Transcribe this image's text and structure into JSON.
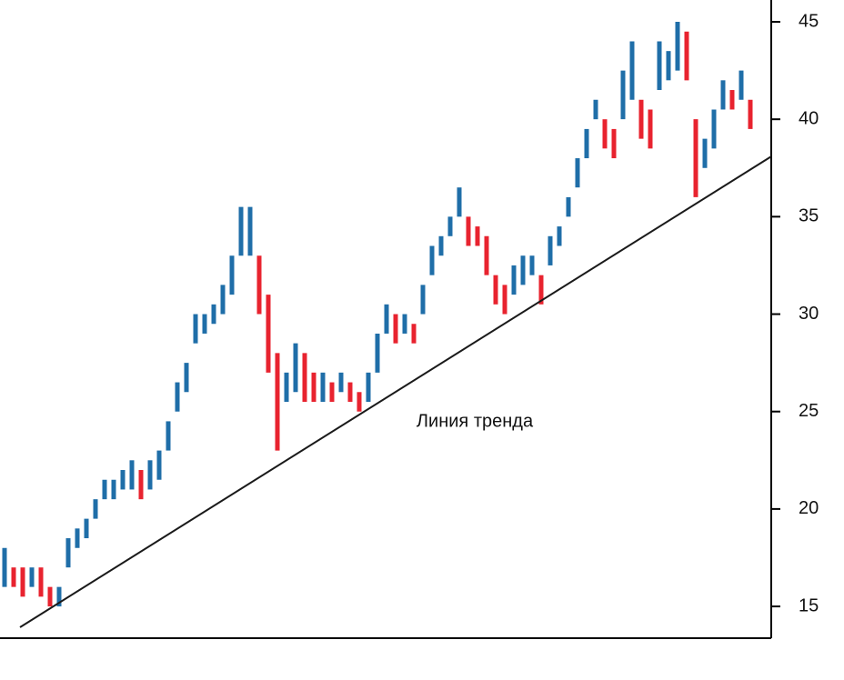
{
  "chart_data": {
    "type": "range-bar",
    "annotation": "Линия тренда",
    "xlim": [
      0,
      84.8
    ],
    "ylim": [
      13.37,
      46.12
    ],
    "yticks": [
      15,
      20,
      25,
      30,
      35,
      40,
      45
    ],
    "up_color": "#1f6ea8",
    "down_color": "#e8232f",
    "x": [
      0.5,
      1.5,
      2.5,
      3.5,
      4.5,
      5.5,
      6.5,
      7.5,
      8.5,
      9.5,
      10.5,
      11.5,
      12.5,
      13.5,
      14.5,
      15.5,
      16.5,
      17.5,
      18.5,
      19.5,
      20.5,
      21.5,
      22.5,
      23.5,
      24.5,
      25.5,
      26.5,
      27.5,
      28.5,
      29.5,
      30.5,
      31.5,
      32.5,
      33.5,
      34.5,
      35.5,
      36.5,
      37.5,
      38.5,
      39.5,
      40.5,
      41.5,
      42.5,
      43.5,
      44.5,
      45.5,
      46.5,
      47.5,
      48.5,
      49.5,
      50.5,
      51.5,
      52.5,
      53.5,
      54.5,
      55.5,
      56.5,
      57.5,
      58.5,
      59.5,
      60.5,
      61.5,
      62.5,
      63.5,
      64.5,
      65.5,
      66.5,
      67.5,
      68.5,
      69.5,
      70.5,
      71.5,
      72.5,
      73.5,
      74.5,
      75.5,
      76.5,
      77.5,
      78.5,
      79.5,
      80.5,
      81.5,
      82.5
    ],
    "low": [
      16,
      16,
      15.5,
      16,
      15.5,
      15,
      15,
      17,
      18,
      18.5,
      19.5,
      20.5,
      20.5,
      21,
      21,
      20.5,
      21,
      21.5,
      23,
      25,
      26,
      28.5,
      29,
      29.5,
      30,
      31,
      33,
      33,
      30,
      27,
      23,
      25.5,
      26,
      25.5,
      25.5,
      25.5,
      25.5,
      26,
      25.5,
      25,
      25.5,
      27,
      29,
      28.5,
      29,
      28.5,
      30,
      32,
      33,
      34,
      35,
      33.5,
      33.5,
      32,
      30.5,
      30,
      31,
      31.5,
      32,
      30.5,
      32.5,
      33.5,
      35,
      36.5,
      38,
      40,
      38.5,
      38,
      40,
      41,
      39,
      38.5,
      41.5,
      42,
      42.5,
      42,
      36,
      37.5,
      38.5,
      40.5,
      40.5,
      41,
      39.5
    ],
    "high": [
      18,
      17,
      17,
      17,
      17,
      16,
      16,
      18.5,
      19,
      19.5,
      20.5,
      21.5,
      21.5,
      22,
      22.5,
      22,
      22.5,
      23,
      24.5,
      26.5,
      27.5,
      30,
      30,
      30.5,
      31.5,
      33,
      35.5,
      35.5,
      33,
      31,
      28,
      27,
      28.5,
      28,
      27,
      27,
      26.5,
      27,
      26.5,
      26,
      27,
      29,
      30.5,
      30,
      30,
      29.5,
      31.5,
      33.5,
      34,
      35,
      36.5,
      35,
      34.5,
      34,
      32,
      31.5,
      32.5,
      33,
      33,
      32,
      34,
      34.5,
      36,
      38,
      39.5,
      41,
      40,
      39.5,
      42.5,
      44,
      41,
      40.5,
      44,
      43.5,
      45,
      44.5,
      40,
      39,
      40.5,
      42,
      41.5,
      42.5,
      41
    ],
    "trendline": {
      "color": "#1a1a1a",
      "x": [
        2.2,
        84.8
      ],
      "y": [
        13.93,
        38.09
      ]
    }
  }
}
